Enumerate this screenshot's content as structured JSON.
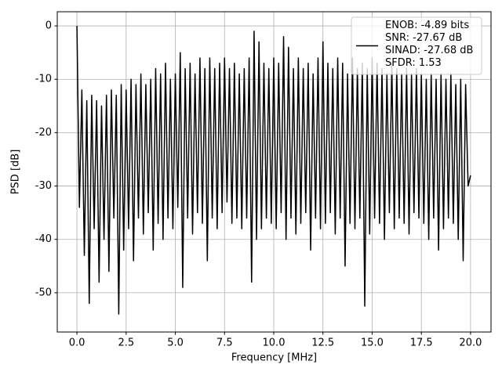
{
  "chart_data": {
    "type": "line",
    "xlabel": "Frequency [MHz]",
    "ylabel": "PSD [dB]",
    "x": [
      0,
      0.125,
      0.25,
      0.375,
      0.5,
      0.625,
      0.75,
      0.875,
      1,
      1.125,
      1.25,
      1.375,
      1.5,
      1.625,
      1.75,
      1.875,
      2,
      2.125,
      2.25,
      2.375,
      2.5,
      2.625,
      2.75,
      2.875,
      3,
      3.125,
      3.25,
      3.375,
      3.5,
      3.625,
      3.75,
      3.875,
      4,
      4.125,
      4.25,
      4.375,
      4.5,
      4.625,
      4.75,
      4.875,
      5,
      5.125,
      5.25,
      5.375,
      5.5,
      5.625,
      5.75,
      5.875,
      6,
      6.125,
      6.25,
      6.375,
      6.5,
      6.625,
      6.75,
      6.875,
      7,
      7.125,
      7.25,
      7.375,
      7.5,
      7.625,
      7.75,
      7.875,
      8,
      8.125,
      8.25,
      8.375,
      8.5,
      8.625,
      8.75,
      8.875,
      9,
      9.125,
      9.25,
      9.375,
      9.5,
      9.625,
      9.75,
      9.875,
      10,
      10.125,
      10.25,
      10.375,
      10.5,
      10.625,
      10.75,
      10.875,
      11,
      11.125,
      11.25,
      11.375,
      11.5,
      11.625,
      11.75,
      11.875,
      12,
      12.125,
      12.25,
      12.375,
      12.5,
      12.625,
      12.75,
      12.875,
      13,
      13.125,
      13.25,
      13.375,
      13.5,
      13.625,
      13.75,
      13.875,
      14,
      14.125,
      14.25,
      14.375,
      14.5,
      14.625,
      14.75,
      14.875,
      15,
      15.125,
      15.25,
      15.375,
      15.5,
      15.625,
      15.75,
      15.875,
      16,
      16.125,
      16.25,
      16.375,
      16.5,
      16.625,
      16.75,
      16.875,
      17,
      17.125,
      17.25,
      17.375,
      17.5,
      17.625,
      17.75,
      17.875,
      18,
      18.125,
      18.25,
      18.375,
      18.5,
      18.625,
      18.75,
      18.875,
      19,
      19.125,
      19.25,
      19.375,
      19.5,
      19.625,
      19.75,
      19.875,
      20
    ],
    "series": [
      {
        "name": "ENOB: -4.89 bits\nSNR: -27.67 dB\nSINAD: -27.68 dB\nSFDR: 1.53",
        "color": "#000000",
        "values": [
          0,
          -34,
          -12,
          -43,
          -14,
          -52,
          -13,
          -38,
          -14,
          -48,
          -15,
          -40,
          -13,
          -46,
          -12,
          -36,
          -13,
          -54,
          -11,
          -42,
          -12,
          -38,
          -10,
          -44,
          -11,
          -36,
          -9,
          -39,
          -11,
          -35,
          -10,
          -42,
          -8,
          -37,
          -9,
          -40,
          -7,
          -36,
          -10,
          -38,
          -9,
          -34,
          -5,
          -49,
          -8,
          -36,
          -7,
          -39,
          -9,
          -35,
          -6,
          -37,
          -8,
          -44,
          -6,
          -36,
          -8,
          -38,
          -7,
          -35,
          -6,
          -33,
          -8,
          -37,
          -7,
          -36,
          -9,
          -38,
          -8,
          -36,
          -6,
          -48,
          -1,
          -40,
          -3,
          -38,
          -7,
          -36,
          -8,
          -37,
          -6,
          -38,
          -7,
          -35,
          -2,
          -40,
          -4,
          -36,
          -8,
          -39,
          -6,
          -37,
          -8,
          -35,
          -7,
          -42,
          -9,
          -36,
          -6,
          -38,
          -3,
          -37,
          -7,
          -35,
          -8,
          -39,
          -6,
          -36,
          -7,
          -45,
          -9,
          -37,
          -6,
          -38,
          -8,
          -36,
          -7,
          -52.5,
          -8,
          -39,
          -6,
          -36,
          -7,
          -37,
          -8,
          -40,
          -9,
          -35,
          -7,
          -38,
          -8,
          -36,
          -9,
          -37,
          -8,
          -39,
          -9,
          -35,
          -8,
          -36,
          -9,
          -37,
          -10,
          -40,
          -9,
          -36,
          -10,
          -42,
          -9,
          -38,
          -10,
          -36,
          -9,
          -37,
          -11,
          -40,
          -10,
          -44,
          -11,
          -30,
          -28
        ]
      }
    ],
    "xlim": [
      -1.0,
      21.04
    ],
    "ylim": [
      -57.35,
      2.65
    ],
    "xticks": [
      {
        "value": 0,
        "label": "0.0"
      },
      {
        "value": 2.5,
        "label": "2.5"
      },
      {
        "value": 5,
        "label": "5.0"
      },
      {
        "value": 7.5,
        "label": "7.5"
      },
      {
        "value": 10,
        "label": "10.0"
      },
      {
        "value": 12.5,
        "label": "12.5"
      },
      {
        "value": 15,
        "label": "15.0"
      },
      {
        "value": 17.5,
        "label": "17.5"
      },
      {
        "value": 20,
        "label": "20.0"
      }
    ],
    "yticks": [
      0,
      -10,
      -20,
      -30,
      -40,
      -50
    ],
    "grid": true,
    "legend": "upper right"
  }
}
